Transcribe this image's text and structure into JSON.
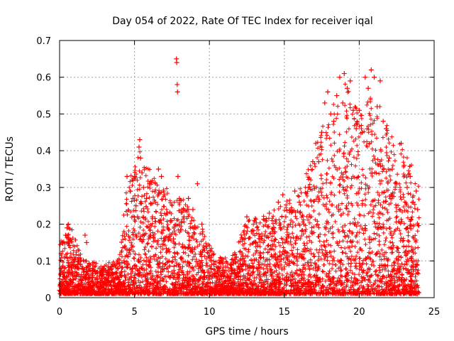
{
  "chart_data": {
    "type": "scatter",
    "title": "Day 054 of 2022, Rate Of TEC Index for receiver iqal",
    "xlabel": "GPS time / hours",
    "ylabel": "ROTI / TECUs",
    "xlim": [
      0,
      25
    ],
    "ylim": [
      0,
      0.7
    ],
    "xticks": [
      0,
      5,
      10,
      15,
      20,
      25
    ],
    "yticks": [
      0,
      0.1,
      0.2,
      0.3,
      0.4,
      0.5,
      0.6,
      0.7
    ],
    "xtick_labels": [
      "0",
      "5",
      "10",
      "15",
      "20",
      "25"
    ],
    "ytick_labels": [
      "0",
      "0.1",
      "0.2",
      "0.3",
      "0.4",
      "0.5",
      "0.6",
      "0.7"
    ],
    "grid": true,
    "marker": "+",
    "color": "#ff0000",
    "series": [
      {
        "points": [
          [
            0.0,
            0.02
          ],
          [
            0.1,
            0.12
          ],
          [
            0.2,
            0.15
          ],
          [
            0.3,
            0.08
          ],
          [
            0.4,
            0.17
          ],
          [
            0.5,
            0.19
          ],
          [
            0.6,
            0.16
          ],
          [
            0.7,
            0.11
          ],
          [
            0.8,
            0.07
          ],
          [
            0.9,
            0.05
          ],
          [
            1.0,
            0.06
          ],
          [
            1.2,
            0.09
          ],
          [
            1.4,
            0.05
          ],
          [
            1.6,
            0.07
          ],
          [
            1.7,
            0.17
          ],
          [
            1.8,
            0.15
          ],
          [
            2.0,
            0.08
          ],
          [
            2.2,
            0.06
          ],
          [
            2.5,
            0.05
          ],
          [
            2.8,
            0.07
          ],
          [
            3.0,
            0.04
          ],
          [
            3.3,
            0.06
          ],
          [
            3.6,
            0.05
          ],
          [
            3.9,
            0.08
          ],
          [
            4.1,
            0.06
          ],
          [
            4.3,
            0.1
          ],
          [
            4.5,
            0.13
          ],
          [
            4.5,
            0.33
          ],
          [
            4.7,
            0.29
          ],
          [
            4.9,
            0.27
          ],
          [
            5.0,
            0.33
          ],
          [
            5.1,
            0.25
          ],
          [
            5.2,
            0.22
          ],
          [
            5.3,
            0.41
          ],
          [
            5.35,
            0.43
          ],
          [
            5.4,
            0.38
          ],
          [
            5.5,
            0.34
          ],
          [
            5.6,
            0.3
          ],
          [
            5.8,
            0.27
          ],
          [
            6.0,
            0.31
          ],
          [
            6.2,
            0.22
          ],
          [
            6.4,
            0.26
          ],
          [
            6.6,
            0.35
          ],
          [
            6.8,
            0.33
          ],
          [
            7.0,
            0.28
          ],
          [
            7.2,
            0.23
          ],
          [
            7.4,
            0.21
          ],
          [
            7.6,
            0.16
          ],
          [
            7.8,
            0.65
          ],
          [
            7.82,
            0.64
          ],
          [
            7.85,
            0.58
          ],
          [
            7.87,
            0.56
          ],
          [
            7.9,
            0.33
          ],
          [
            8.0,
            0.27
          ],
          [
            8.3,
            0.22
          ],
          [
            8.6,
            0.27
          ],
          [
            8.9,
            0.24
          ],
          [
            9.2,
            0.31
          ],
          [
            9.5,
            0.2
          ],
          [
            9.8,
            0.14
          ],
          [
            10.0,
            0.11
          ],
          [
            10.3,
            0.09
          ],
          [
            10.6,
            0.08
          ],
          [
            11.0,
            0.07
          ],
          [
            11.4,
            0.09
          ],
          [
            11.8,
            0.11
          ],
          [
            12.2,
            0.16
          ],
          [
            12.5,
            0.22
          ],
          [
            12.8,
            0.18
          ],
          [
            13.1,
            0.15
          ],
          [
            13.4,
            0.12
          ],
          [
            13.7,
            0.17
          ],
          [
            14.0,
            0.23
          ],
          [
            14.3,
            0.19
          ],
          [
            14.6,
            0.26
          ],
          [
            14.9,
            0.28
          ],
          [
            15.1,
            0.22
          ],
          [
            15.4,
            0.2
          ],
          [
            15.7,
            0.29
          ],
          [
            16.0,
            0.26
          ],
          [
            16.3,
            0.2
          ],
          [
            16.6,
            0.3
          ],
          [
            16.9,
            0.37
          ],
          [
            17.1,
            0.42
          ],
          [
            17.3,
            0.37
          ],
          [
            17.5,
            0.45
          ],
          [
            17.7,
            0.53
          ],
          [
            17.9,
            0.56
          ],
          [
            18.1,
            0.5
          ],
          [
            18.3,
            0.48
          ],
          [
            18.5,
            0.55
          ],
          [
            18.7,
            0.6
          ],
          [
            18.9,
            0.53
          ],
          [
            19.0,
            0.61
          ],
          [
            19.2,
            0.57
          ],
          [
            19.4,
            0.59
          ],
          [
            19.6,
            0.51
          ],
          [
            19.8,
            0.46
          ],
          [
            20.0,
            0.51
          ],
          [
            20.2,
            0.45
          ],
          [
            20.4,
            0.6
          ],
          [
            20.6,
            0.57
          ],
          [
            20.8,
            0.62
          ],
          [
            21.0,
            0.6
          ],
          [
            21.2,
            0.52
          ],
          [
            21.4,
            0.59
          ],
          [
            21.6,
            0.48
          ],
          [
            21.8,
            0.46
          ],
          [
            22.0,
            0.38
          ],
          [
            22.2,
            0.35
          ],
          [
            22.5,
            0.31
          ],
          [
            22.8,
            0.42
          ],
          [
            23.0,
            0.36
          ],
          [
            23.2,
            0.3
          ],
          [
            23.4,
            0.33
          ],
          [
            23.6,
            0.26
          ],
          [
            23.8,
            0.29
          ],
          [
            23.9,
            0.24
          ]
        ]
      }
    ]
  }
}
